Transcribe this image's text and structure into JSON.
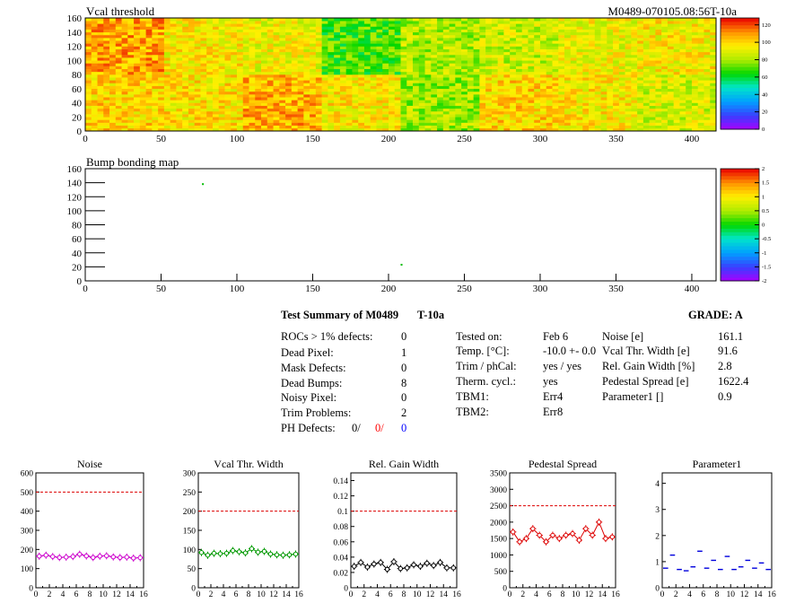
{
  "header": {
    "threshold_title": "Vcal threshold",
    "module_id": "M0489-070105.08:56T-10a",
    "bump_title": "Bump bonding map"
  },
  "chart_data": [
    {
      "type": "heatmap",
      "title": "Vcal threshold",
      "xlim": [
        0,
        416
      ],
      "ylim": [
        0,
        160
      ],
      "x_ticks": [
        "0",
        "50",
        "100",
        "150",
        "200",
        "250",
        "300",
        "350",
        "400"
      ],
      "y_ticks": [
        "0",
        "20",
        "40",
        "60",
        "80",
        "100",
        "120",
        "140",
        "160"
      ],
      "colorbar": {
        "range": [
          0,
          128
        ],
        "ticks": [
          "0",
          "20",
          "40",
          "60",
          "80",
          "100",
          "120"
        ]
      },
      "roc_mean_threshold": {
        "top_row": [
          108,
          95,
          92,
          70,
          82,
          86,
          92,
          95
        ],
        "bottom_row": [
          100,
          98,
          106,
          96,
          80,
          100,
          96,
          88
        ]
      }
    },
    {
      "type": "heatmap",
      "title": "Bump bonding map",
      "xlim": [
        0,
        416
      ],
      "ylim": [
        0,
        160
      ],
      "x_ticks": [
        "0",
        "50",
        "100",
        "150",
        "200",
        "250",
        "300",
        "350",
        "400"
      ],
      "y_ticks": [
        "0",
        "20",
        "40",
        "60",
        "80",
        "100",
        "120",
        "140",
        "160"
      ],
      "colorbar": {
        "range": [
          -2,
          2
        ],
        "ticks": [
          "-2",
          "-1.5",
          "-1",
          "-0.5",
          "0",
          "0.5",
          "1",
          "1.5",
          "2"
        ]
      },
      "hits": [
        {
          "x": 77,
          "y": 138
        },
        {
          "x": 208,
          "y": 23
        }
      ]
    },
    {
      "type": "line",
      "title": "Noise",
      "x": [
        0,
        1,
        2,
        3,
        4,
        5,
        6,
        7,
        8,
        9,
        10,
        11,
        12,
        13,
        14,
        15
      ],
      "values": [
        165,
        170,
        163,
        158,
        160,
        163,
        175,
        166,
        158,
        165,
        167,
        161,
        158,
        160,
        155,
        157
      ],
      "ylim": [
        0,
        600
      ],
      "reference_line": 500,
      "color": "#cc00cc",
      "x_ticks": [
        "0",
        "2",
        "4",
        "6",
        "8",
        "10",
        "12",
        "14",
        "16"
      ],
      "y_ticks": [
        "0",
        "100",
        "200",
        "300",
        "400",
        "500",
        "600"
      ]
    },
    {
      "type": "line",
      "title": "Vcal Thr. Width",
      "x": [
        0,
        1,
        2,
        3,
        4,
        5,
        6,
        7,
        8,
        9,
        10,
        11,
        12,
        13,
        14,
        15
      ],
      "values": [
        92,
        85,
        90,
        89,
        90,
        97,
        94,
        91,
        102,
        93,
        95,
        88,
        86,
        85,
        86,
        88
      ],
      "ylim": [
        0,
        300
      ],
      "reference_line": 200,
      "color": "#009900",
      "x_ticks": [
        "0",
        "2",
        "4",
        "6",
        "8",
        "10",
        "12",
        "14",
        "16"
      ],
      "y_ticks": [
        "0",
        "50",
        "100",
        "150",
        "200",
        "250",
        "300"
      ]
    },
    {
      "type": "line",
      "title": "Rel. Gain Width",
      "x": [
        0,
        1,
        2,
        3,
        4,
        5,
        6,
        7,
        8,
        9,
        10,
        11,
        12,
        13,
        14,
        15
      ],
      "values": [
        0.028,
        0.033,
        0.027,
        0.031,
        0.033,
        0.024,
        0.034,
        0.025,
        0.026,
        0.03,
        0.028,
        0.032,
        0.029,
        0.033,
        0.026,
        0.026
      ],
      "ylim": [
        0,
        0.15
      ],
      "reference_line": 0.1,
      "color": "#000000",
      "x_ticks": [
        "0",
        "2",
        "4",
        "6",
        "8",
        "10",
        "12",
        "14",
        "16"
      ],
      "y_ticks": [
        "0",
        "0.02",
        "0.04",
        "0.06",
        "0.08",
        "0.1",
        "0.12",
        "0.14"
      ]
    },
    {
      "type": "line",
      "title": "Pedestal Spread",
      "x": [
        0,
        1,
        2,
        3,
        4,
        5,
        6,
        7,
        8,
        9,
        10,
        11,
        12,
        13,
        14,
        15
      ],
      "values": [
        1700,
        1400,
        1500,
        1800,
        1600,
        1400,
        1600,
        1500,
        1600,
        1650,
        1450,
        1800,
        1600,
        2000,
        1500,
        1550
      ],
      "ylim": [
        0,
        3500
      ],
      "reference_line": 2500,
      "color": "#dd0000",
      "x_ticks": [
        "0",
        "2",
        "4",
        "6",
        "8",
        "10",
        "12",
        "14",
        "16"
      ],
      "y_ticks": [
        "0",
        "500",
        "1000",
        "1500",
        "2000",
        "2500",
        "3000",
        "3500"
      ]
    },
    {
      "type": "scatter",
      "title": "Parameter1",
      "x": [
        0,
        1,
        2,
        3,
        4,
        5,
        6,
        7,
        8,
        9,
        10,
        11,
        12,
        13,
        14,
        15
      ],
      "values": [
        0.75,
        1.25,
        0.7,
        0.65,
        0.8,
        1.4,
        0.75,
        1.05,
        0.7,
        1.2,
        0.7,
        0.8,
        1.05,
        0.75,
        0.95,
        0.7
      ],
      "ylim": [
        0,
        4.4
      ],
      "color": "#0000dd",
      "x_ticks": [
        "0",
        "2",
        "4",
        "6",
        "8",
        "10",
        "12",
        "14",
        "16"
      ],
      "y_ticks": [
        "0",
        "1",
        "2",
        "3",
        "4"
      ]
    }
  ],
  "summary": {
    "title": "Test Summary of M0489",
    "test": "T-10a",
    "grade": "GRADE:  A",
    "defects": [
      {
        "label": "ROCs > 1% defects:",
        "value": "0"
      },
      {
        "label": "Dead Pixel:",
        "value": "1"
      },
      {
        "label": "Mask Defects:",
        "value": "0"
      },
      {
        "label": "Dead Bumps:",
        "value": "8"
      },
      {
        "label": "Noisy Pixel:",
        "value": "0"
      },
      {
        "label": "Trim Problems:",
        "value": "2"
      }
    ],
    "ph_label": "PH Defects:",
    "ph_values": [
      {
        "text": "0/",
        "color": "#000000"
      },
      {
        "text": "0/",
        "color": "#ff0000"
      },
      {
        "text": "0",
        "color": "#0000ff"
      }
    ],
    "conditions": [
      {
        "label": "Tested on:",
        "value": "Feb 6"
      },
      {
        "label": "Temp. [°C]:",
        "value": "-10.0 +- 0.0"
      },
      {
        "label": "Trim / phCal:",
        "value": "yes / yes"
      },
      {
        "label": "Therm. cycl.:",
        "value": "yes"
      },
      {
        "label": "TBM1:",
        "value": "Err4"
      },
      {
        "label": "TBM2:",
        "value": "Err8"
      }
    ],
    "results": [
      {
        "label": "Noise [e]",
        "value": "161.1"
      },
      {
        "label": "Vcal Thr. Width [e]",
        "value": "91.6"
      },
      {
        "label": "Rel. Gain Width [%]",
        "value": "2.8"
      },
      {
        "label": "Pedestal Spread [e]",
        "value": "1622.4"
      },
      {
        "label": "Parameter1 []",
        "value": "0.9"
      }
    ]
  }
}
